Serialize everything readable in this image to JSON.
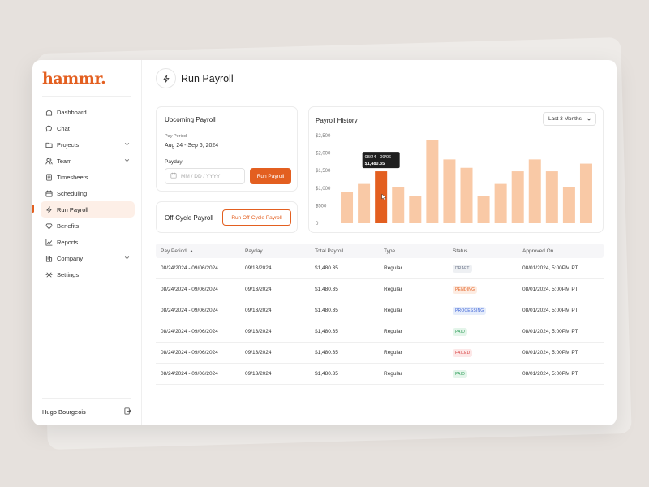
{
  "app": {
    "logo": "hammr."
  },
  "sidebar": {
    "items": [
      {
        "label": "Dashboard",
        "icon": "home-icon"
      },
      {
        "label": "Chat",
        "icon": "chat-icon"
      },
      {
        "label": "Projects",
        "icon": "folder-icon",
        "expandable": true
      },
      {
        "label": "Team",
        "icon": "users-icon",
        "expandable": true
      },
      {
        "label": "Timesheets",
        "icon": "document-icon"
      },
      {
        "label": "Scheduling",
        "icon": "calendar-icon"
      },
      {
        "label": "Run Payroll",
        "icon": "bolt-icon",
        "active": true
      },
      {
        "label": "Benefits",
        "icon": "heart-icon"
      },
      {
        "label": "Reports",
        "icon": "chart-icon"
      },
      {
        "label": "Company",
        "icon": "building-icon",
        "expandable": true
      },
      {
        "label": "Settings",
        "icon": "gear-icon"
      }
    ],
    "user_name": "Hugo Bourgeois"
  },
  "header": {
    "title": "Run Payroll"
  },
  "upcoming": {
    "title": "Upcoming Payroll",
    "pay_period_label": "Pay Period",
    "pay_period_value": "Aug 24 - Sep 6, 2024",
    "payday_label": "Payday",
    "payday_placeholder": "MM / DD / YYYY",
    "run_button": "Run Payroll"
  },
  "offcycle": {
    "title": "Off-Cycle Payroll",
    "button": "Run Off-Cycle Payroll"
  },
  "history": {
    "title": "Payroll History",
    "range": "Last 3 Months"
  },
  "chart_data": {
    "type": "bar",
    "title": "Payroll History",
    "yticks": [
      "$2,500",
      "$2,000",
      "$1,500",
      "$1,000",
      "$500",
      "0"
    ],
    "ylim": [
      0,
      2500
    ],
    "values": [
      900,
      1120,
      1480,
      1020,
      780,
      2380,
      1820,
      1580,
      780,
      1120,
      1480,
      1820,
      1480,
      1020,
      1700
    ],
    "highlight_index": 2,
    "tooltip": {
      "label": "08/24 - 09/06",
      "value": "$1,480.35"
    },
    "colors": {
      "bar": "#f9c9a6",
      "highlight": "#e35f20",
      "tooltip_bg": "#1f1f1f"
    }
  },
  "table": {
    "columns": [
      "Pay Period",
      "Payday",
      "Total Payroll",
      "Type",
      "Status",
      "Approved On"
    ],
    "rows": [
      {
        "period": "08/24/2024 - 09/06/2024",
        "payday": "09/13/2024",
        "total": "$1,480.35",
        "type": "Regular",
        "status": "DRAFT",
        "approved": "08/01/2024, 5:00PM PT"
      },
      {
        "period": "08/24/2024 - 09/06/2024",
        "payday": "09/13/2024",
        "total": "$1,480.35",
        "type": "Regular",
        "status": "PENDING",
        "approved": "08/01/2024, 5:00PM PT"
      },
      {
        "period": "08/24/2024 - 09/06/2024",
        "payday": "09/13/2024",
        "total": "$1,480.35",
        "type": "Regular",
        "status": "PROCESSING",
        "approved": "08/01/2024, 5:00PM PT"
      },
      {
        "period": "08/24/2024 - 09/06/2024",
        "payday": "09/13/2024",
        "total": "$1,480.35",
        "type": "Regular",
        "status": "PAID",
        "approved": "08/01/2024, 5:00PM PT"
      },
      {
        "period": "08/24/2024 - 09/06/2024",
        "payday": "09/13/2024",
        "total": "$1,480.35",
        "type": "Regular",
        "status": "FAILED",
        "approved": "08/01/2024, 5:00PM PT"
      },
      {
        "period": "08/24/2024 - 09/06/2024",
        "payday": "09/13/2024",
        "total": "$1,480.35",
        "type": "Regular",
        "status": "PAID",
        "approved": "08/01/2024, 5:00PM PT"
      }
    ],
    "status_colors": {
      "DRAFT": {
        "bg": "#eef0f3",
        "fg": "#667085"
      },
      "PENDING": {
        "bg": "#fdece2",
        "fg": "#e35f20"
      },
      "PROCESSING": {
        "bg": "#e6edfb",
        "fg": "#3d63d6"
      },
      "PAID": {
        "bg": "#e4f5ea",
        "fg": "#2f9e5a"
      },
      "FAILED": {
        "bg": "#fde7e7",
        "fg": "#d63d3d"
      }
    }
  }
}
